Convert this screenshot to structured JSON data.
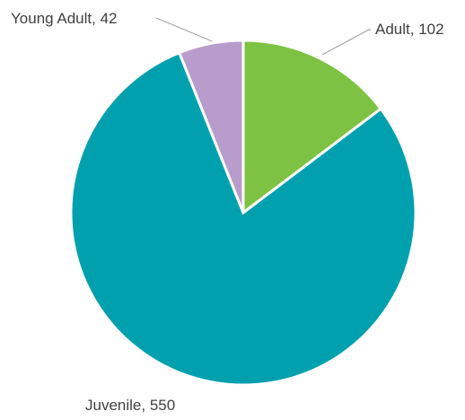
{
  "chart_data": {
    "type": "pie",
    "title": "",
    "legend": "none",
    "slices": [
      {
        "name": "Adult",
        "value": 102,
        "label": "Adult, 102",
        "color": "#7dc242"
      },
      {
        "name": "Juvenile",
        "value": 550,
        "label": "Juvenile, 550",
        "color": "#00a0ae"
      },
      {
        "name": "Young Adult",
        "value": 42,
        "label": "Young Adult, 42",
        "color": "#b89ccb"
      }
    ]
  }
}
